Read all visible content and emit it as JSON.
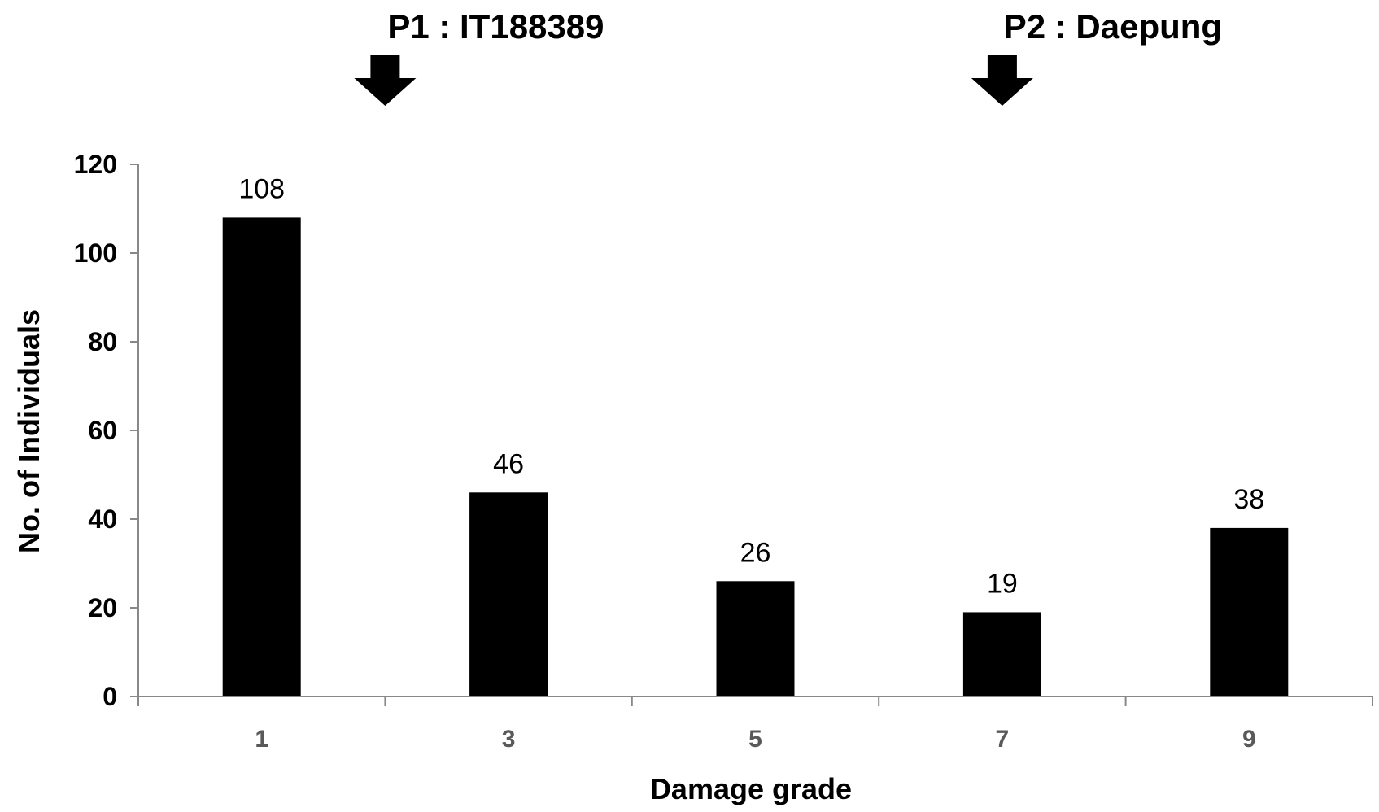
{
  "chart_data": {
    "type": "bar",
    "categories": [
      "1",
      "3",
      "5",
      "7",
      "9"
    ],
    "values": [
      108,
      46,
      26,
      19,
      38
    ],
    "data_labels": [
      "108",
      "46",
      "26",
      "19",
      "38"
    ],
    "xlabel": "Damage grade",
    "ylabel": "No. of Individuals",
    "ylim": [
      0,
      120
    ],
    "yticks": [
      0,
      20,
      40,
      60,
      80,
      100,
      120
    ],
    "grid": false,
    "legend": "none",
    "bar_color": "#000000",
    "annotations": [
      {
        "text": "P1 : IT188389",
        "x_between": [
          "1",
          "3"
        ],
        "icon": "down-arrow-icon"
      },
      {
        "text": "P2 : Daepung",
        "at_category": "7",
        "icon": "down-arrow-icon"
      }
    ]
  }
}
